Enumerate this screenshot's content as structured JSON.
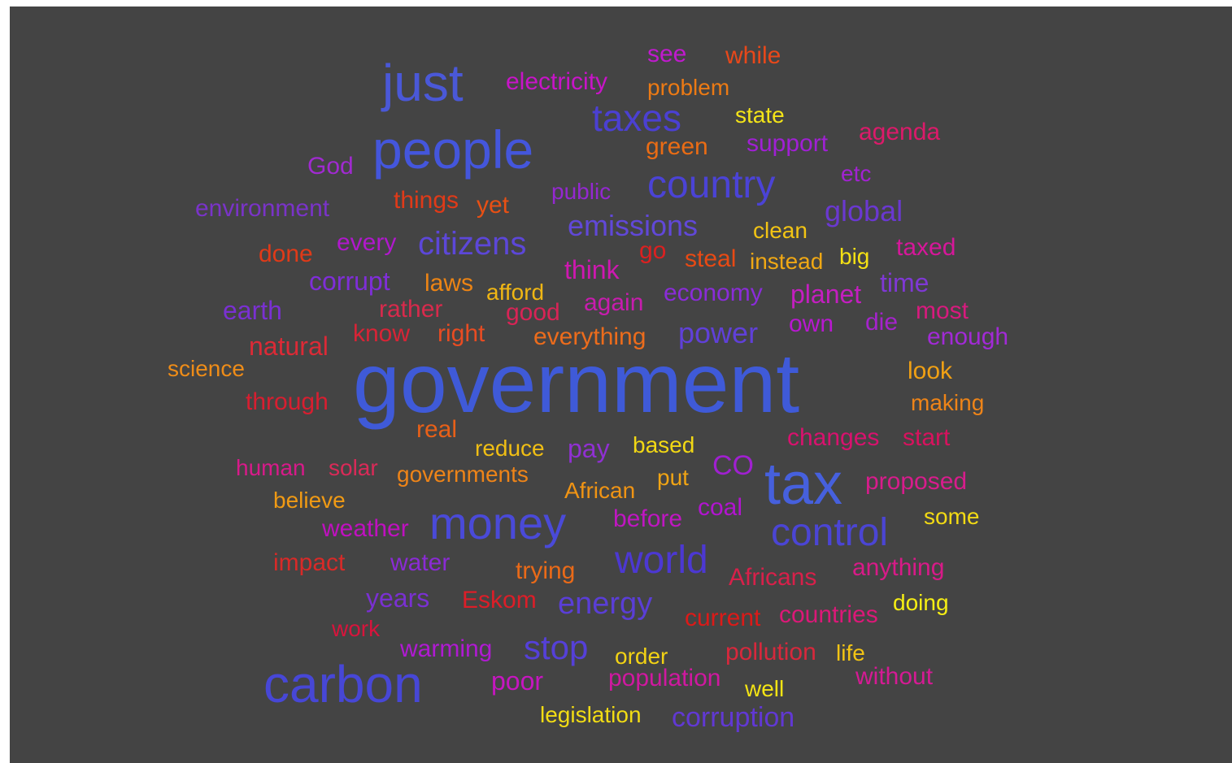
{
  "cloud": {
    "background": "#444444",
    "words": [
      {
        "text": "government",
        "color": "#3f5ad8"
      },
      {
        "text": "people",
        "color": "#4456dc"
      },
      {
        "text": "carbon",
        "color": "#4747d6"
      },
      {
        "text": "money",
        "color": "#4a4ad8"
      },
      {
        "text": "tax",
        "color": "#4660dd"
      },
      {
        "text": "just",
        "color": "#4a58d8"
      },
      {
        "text": "control",
        "color": "#4b45d4"
      },
      {
        "text": "world",
        "color": "#4c38d2"
      },
      {
        "text": "country",
        "color": "#4b43d5"
      },
      {
        "text": "taxes",
        "color": "#4b40d2"
      },
      {
        "text": "stop",
        "color": "#5540d8"
      },
      {
        "text": "energy",
        "color": "#5a3ed6"
      },
      {
        "text": "citizens",
        "color": "#5c47d8"
      },
      {
        "text": "emissions",
        "color": "#6148d8"
      },
      {
        "text": "global",
        "color": "#6a38d0"
      },
      {
        "text": "power",
        "color": "#6040d8"
      },
      {
        "text": "corruption",
        "color": "#6138d3"
      },
      {
        "text": "corrupt",
        "color": "#7f2ed8"
      },
      {
        "text": "earth",
        "color": "#7a30d2"
      },
      {
        "text": "environment",
        "color": "#7a33c8"
      },
      {
        "text": "time",
        "color": "#7f38d4"
      },
      {
        "text": "economy",
        "color": "#8a2cd8"
      },
      {
        "text": "years",
        "color": "#7a30d2"
      },
      {
        "text": "water",
        "color": "#8a2bd4"
      },
      {
        "text": "pay",
        "color": "#9030d2"
      },
      {
        "text": "CO",
        "color": "#a020d0"
      },
      {
        "text": "public",
        "color": "#9428d0"
      },
      {
        "text": "God",
        "color": "#a02ad0"
      },
      {
        "text": "support",
        "color": "#a020d4"
      },
      {
        "text": "die",
        "color": "#a523cc"
      },
      {
        "text": "enough",
        "color": "#a22ad6"
      },
      {
        "text": "etc",
        "color": "#a222d2"
      },
      {
        "text": "warming",
        "color": "#b01ad2"
      },
      {
        "text": "every",
        "color": "#b018cc"
      },
      {
        "text": "coal",
        "color": "#b214d0"
      },
      {
        "text": "own",
        "color": "#b818d0"
      },
      {
        "text": "see",
        "color": "#c01ace"
      },
      {
        "text": "electricity",
        "color": "#c814c8"
      },
      {
        "text": "weather",
        "color": "#c010c0"
      },
      {
        "text": "poor",
        "color": "#c616c0"
      },
      {
        "text": "before",
        "color": "#c016c2"
      },
      {
        "text": "planet",
        "color": "#c41ec0"
      },
      {
        "text": "again",
        "color": "#c81cae"
      },
      {
        "text": "think",
        "color": "#ce18b0"
      },
      {
        "text": "population",
        "color": "#d018a0"
      },
      {
        "text": "taxed",
        "color": "#d6179a"
      },
      {
        "text": "human",
        "color": "#d81a8a"
      },
      {
        "text": "proposed",
        "color": "#d81c8c"
      },
      {
        "text": "without",
        "color": "#d51a94"
      },
      {
        "text": "anything",
        "color": "#d81a88"
      },
      {
        "text": "most",
        "color": "#d81a7e"
      },
      {
        "text": "changes",
        "color": "#d8126e"
      },
      {
        "text": "start",
        "color": "#d8125e"
      },
      {
        "text": "agenda",
        "color": "#dc1a6a"
      },
      {
        "text": "countries",
        "color": "#dc1878"
      },
      {
        "text": "good",
        "color": "#d82456"
      },
      {
        "text": "rather",
        "color": "#d82a4c"
      },
      {
        "text": "solar",
        "color": "#da2a58"
      },
      {
        "text": "work",
        "color": "#d8143c"
      },
      {
        "text": "Africans",
        "color": "#d8204a"
      },
      {
        "text": "pollution",
        "color": "#d8283c"
      },
      {
        "text": "know",
        "color": "#d82436"
      },
      {
        "text": "natural",
        "color": "#dc2a36"
      },
      {
        "text": "through",
        "color": "#d81e30"
      },
      {
        "text": "impact",
        "color": "#d82a28"
      },
      {
        "text": "current",
        "color": "#dc1a18"
      },
      {
        "text": "Eskom",
        "color": "#dc1e28"
      },
      {
        "text": "go",
        "color": "#dc2020"
      },
      {
        "text": "done",
        "color": "#e03a18"
      },
      {
        "text": "things",
        "color": "#e03a18"
      },
      {
        "text": "steal",
        "color": "#e84a14"
      },
      {
        "text": "while",
        "color": "#e8481a"
      },
      {
        "text": "right",
        "color": "#e84c22"
      },
      {
        "text": "yet",
        "color": "#e85014"
      },
      {
        "text": "real",
        "color": "#e86018"
      },
      {
        "text": "trying",
        "color": "#ea6a18"
      },
      {
        "text": "green",
        "color": "#ea6c14"
      },
      {
        "text": "everything",
        "color": "#ec6c1c"
      },
      {
        "text": "problem",
        "color": "#ec7a14"
      },
      {
        "text": "laws",
        "color": "#ec8414"
      },
      {
        "text": "governments",
        "color": "#ee8418"
      },
      {
        "text": "making",
        "color": "#ee8418"
      },
      {
        "text": "science",
        "color": "#ee8c18"
      },
      {
        "text": "African",
        "color": "#f09414"
      },
      {
        "text": "believe",
        "color": "#f09a14"
      },
      {
        "text": "look",
        "color": "#f0a014"
      },
      {
        "text": "put",
        "color": "#f0a414"
      },
      {
        "text": "instead",
        "color": "#f0a814"
      },
      {
        "text": "afford",
        "color": "#f0b614"
      },
      {
        "text": "reduce",
        "color": "#f0be14"
      },
      {
        "text": "clean",
        "color": "#f2c414"
      },
      {
        "text": "life",
        "color": "#f2c414"
      },
      {
        "text": "order",
        "color": "#f2d214"
      },
      {
        "text": "based",
        "color": "#f2d814"
      },
      {
        "text": "some",
        "color": "#f2da14"
      },
      {
        "text": "legislation",
        "color": "#f2dc14"
      },
      {
        "text": "big",
        "color": "#f4e014"
      },
      {
        "text": "well",
        "color": "#f4e414"
      },
      {
        "text": "state",
        "color": "#f4e418"
      },
      {
        "text": "doing",
        "color": "#f6ee14"
      }
    ]
  }
}
